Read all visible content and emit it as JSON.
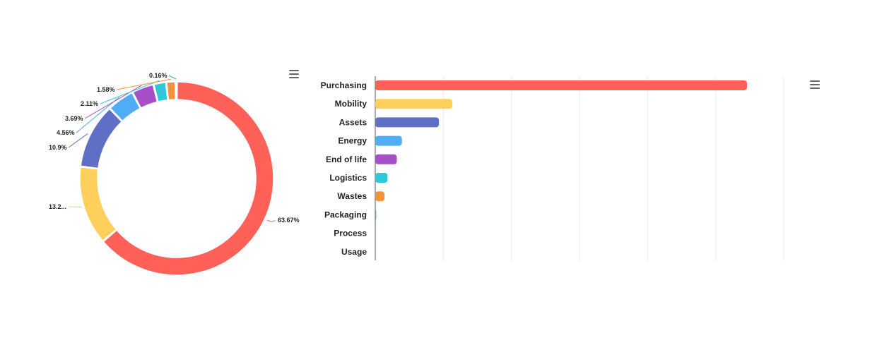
{
  "chart_data": [
    {
      "type": "pie",
      "variant": "donut",
      "slices": [
        {
          "label": "Purchasing",
          "value": 63.67,
          "display": "63.67%",
          "color": "#ff6159"
        },
        {
          "label": "Mobility",
          "value": 13.2,
          "display": "13.2...",
          "color": "#ffcf5c"
        },
        {
          "label": "Assets",
          "value": 10.9,
          "display": "10.9%",
          "color": "#5f6fc6"
        },
        {
          "label": "Energy",
          "value": 4.56,
          "display": "4.56%",
          "color": "#4eadf5"
        },
        {
          "label": "End of life",
          "value": 3.69,
          "display": "3.69%",
          "color": "#a64fc9"
        },
        {
          "label": "Logistics",
          "value": 2.11,
          "display": "2.11%",
          "color": "#2ec8d8"
        },
        {
          "label": "Wastes",
          "value": 1.58,
          "display": "1.58%",
          "color": "#f2923c"
        },
        {
          "label": "Packaging",
          "value": 0.16,
          "display": "0.16%",
          "color": "#3fb58c"
        }
      ]
    },
    {
      "type": "bar",
      "orientation": "horizontal",
      "categories": [
        "Purchasing",
        "Mobility",
        "Assets",
        "Energy",
        "End of life",
        "Logistics",
        "Wastes",
        "Packaging",
        "Process",
        "Usage"
      ],
      "values": [
        63.67,
        13.2,
        10.9,
        4.56,
        3.69,
        2.11,
        1.58,
        0.16,
        0,
        0
      ],
      "colors": [
        "#ff6159",
        "#ffcf5c",
        "#5f6fc6",
        "#4eadf5",
        "#a64fc9",
        "#2ec8d8",
        "#f2923c",
        "#3fb58c",
        "#999999",
        "#999999"
      ],
      "xlim": [
        0,
        72
      ],
      "grid": true
    }
  ],
  "menu_icon": "hamburger-menu-icon"
}
